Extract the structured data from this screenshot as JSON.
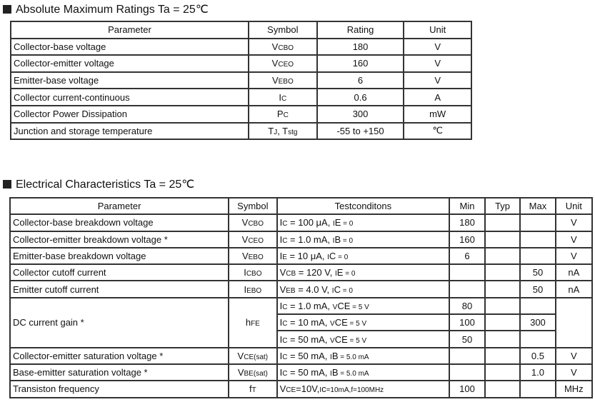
{
  "abs": {
    "title": "Absolute Maximum Ratings Ta = 25℃",
    "headers": [
      "Parameter",
      "Symbol",
      "Rating",
      "Unit"
    ],
    "rows": [
      {
        "param": "Collector-base voltage",
        "symbol": [
          "V",
          "CBO"
        ],
        "rating": "180",
        "unit": "V"
      },
      {
        "param": "Collector-emitter voltage",
        "symbol": [
          "V",
          "CEO"
        ],
        "rating": "160",
        "unit": "V"
      },
      {
        "param": "Emitter-base voltage",
        "symbol": [
          "V",
          "EBO"
        ],
        "rating": "6",
        "unit": "V"
      },
      {
        "param": "Collector current-continuous",
        "symbol": [
          "I",
          "C"
        ],
        "rating": "0.6",
        "unit": "A"
      },
      {
        "param": "Collector Power Dissipation",
        "symbol": [
          "P",
          "C"
        ],
        "rating": "300",
        "unit": "mW"
      },
      {
        "param": "Junction and storage temperature",
        "symbol": [
          "T",
          "J",
          ", T",
          "stg"
        ],
        "rating": "-55 to +150",
        "unit": "℃"
      }
    ]
  },
  "elec": {
    "title": "Electrical Characteristics Ta = 25℃",
    "headers": [
      "Parameter",
      "Symbol",
      "Testconditons",
      "Min",
      "Typ",
      "Max",
      "Unit"
    ],
    "rows": [
      {
        "param": "Collector-base breakdown voltage",
        "symbol": [
          "V",
          "CBO"
        ],
        "unit": "V",
        "conds": [
          {
            "test": [
              "I",
              "C",
              " = 100 μA, ",
              "I",
              "E",
              " = 0"
            ],
            "min": "180",
            "typ": "",
            "max": ""
          }
        ]
      },
      {
        "param": "Collector-emitter breakdown voltage *",
        "symbol": [
          "V",
          "CEO"
        ],
        "unit": "V",
        "conds": [
          {
            "test": [
              "I",
              "C",
              " = 1.0 mA, ",
              "I",
              "B",
              " = 0"
            ],
            "min": "160",
            "typ": "",
            "max": ""
          }
        ]
      },
      {
        "param": "Emitter-base breakdown voltage",
        "symbol": [
          "V",
          "EBO"
        ],
        "unit": "V",
        "conds": [
          {
            "test": [
              "I",
              "E",
              " = 10 μA, ",
              "I",
              "C",
              " = 0"
            ],
            "min": "6",
            "typ": "",
            "max": ""
          }
        ]
      },
      {
        "param": "Collector cutoff current",
        "symbol": [
          "I",
          "CBO"
        ],
        "unit": "nA",
        "conds": [
          {
            "test": [
              "V",
              "CB",
              " = 120 V, ",
              "I",
              "E",
              " = 0"
            ],
            "min": "",
            "typ": "",
            "max": "50"
          }
        ]
      },
      {
        "param": "Emitter cutoff current",
        "symbol": [
          "I",
          "EBO"
        ],
        "unit": "nA",
        "conds": [
          {
            "test": [
              "V",
              "EB",
              " = 4.0 V, ",
              "I",
              "C",
              " = 0"
            ],
            "min": "",
            "typ": "",
            "max": "50"
          }
        ]
      },
      {
        "param": "DC current gain *",
        "symbol": [
          "h",
          "FE"
        ],
        "unit": "",
        "conds": [
          {
            "test": [
              "I",
              "C",
              " = 1.0 mA, ",
              "V",
              "CE",
              " = 5 V"
            ],
            "min": "80",
            "typ": "",
            "max": ""
          },
          {
            "test": [
              "I",
              "C",
              " = 10 mA, ",
              "V",
              "CE",
              " = 5 V"
            ],
            "min": "100",
            "typ": "",
            "max": "300"
          },
          {
            "test": [
              "I",
              "C",
              " = 50 mA, ",
              "V",
              "CE",
              " = 5 V"
            ],
            "min": "50",
            "typ": "",
            "max": ""
          }
        ]
      },
      {
        "param": "Collector-emitter saturation voltage *",
        "symbol": [
          "V",
          "CE(sat)"
        ],
        "unit": "V",
        "conds": [
          {
            "test": [
              "I",
              "C",
              " = 50 mA, ",
              "I",
              "B",
              " = 5.0 mA"
            ],
            "min": "",
            "typ": "",
            "max": "0.5"
          }
        ]
      },
      {
        "param": "Base-emitter saturation voltage *",
        "symbol": [
          "V",
          "BE(sat)"
        ],
        "unit": "V",
        "conds": [
          {
            "test": [
              "I",
              "C",
              " = 50 mA, ",
              "I",
              "B",
              " = 5.0 mA"
            ],
            "min": "",
            "typ": "",
            "max": "1.0"
          }
        ]
      },
      {
        "param": "Transiston frequency",
        "symbol": [
          "f",
          "T"
        ],
        "unit": "MHz",
        "conds": [
          {
            "test": [
              "V",
              "CE",
              "=10V,",
              "I",
              "c",
              "=10mA,f=100MHz"
            ],
            "min": "100",
            "typ": "",
            "max": ""
          }
        ]
      }
    ]
  }
}
